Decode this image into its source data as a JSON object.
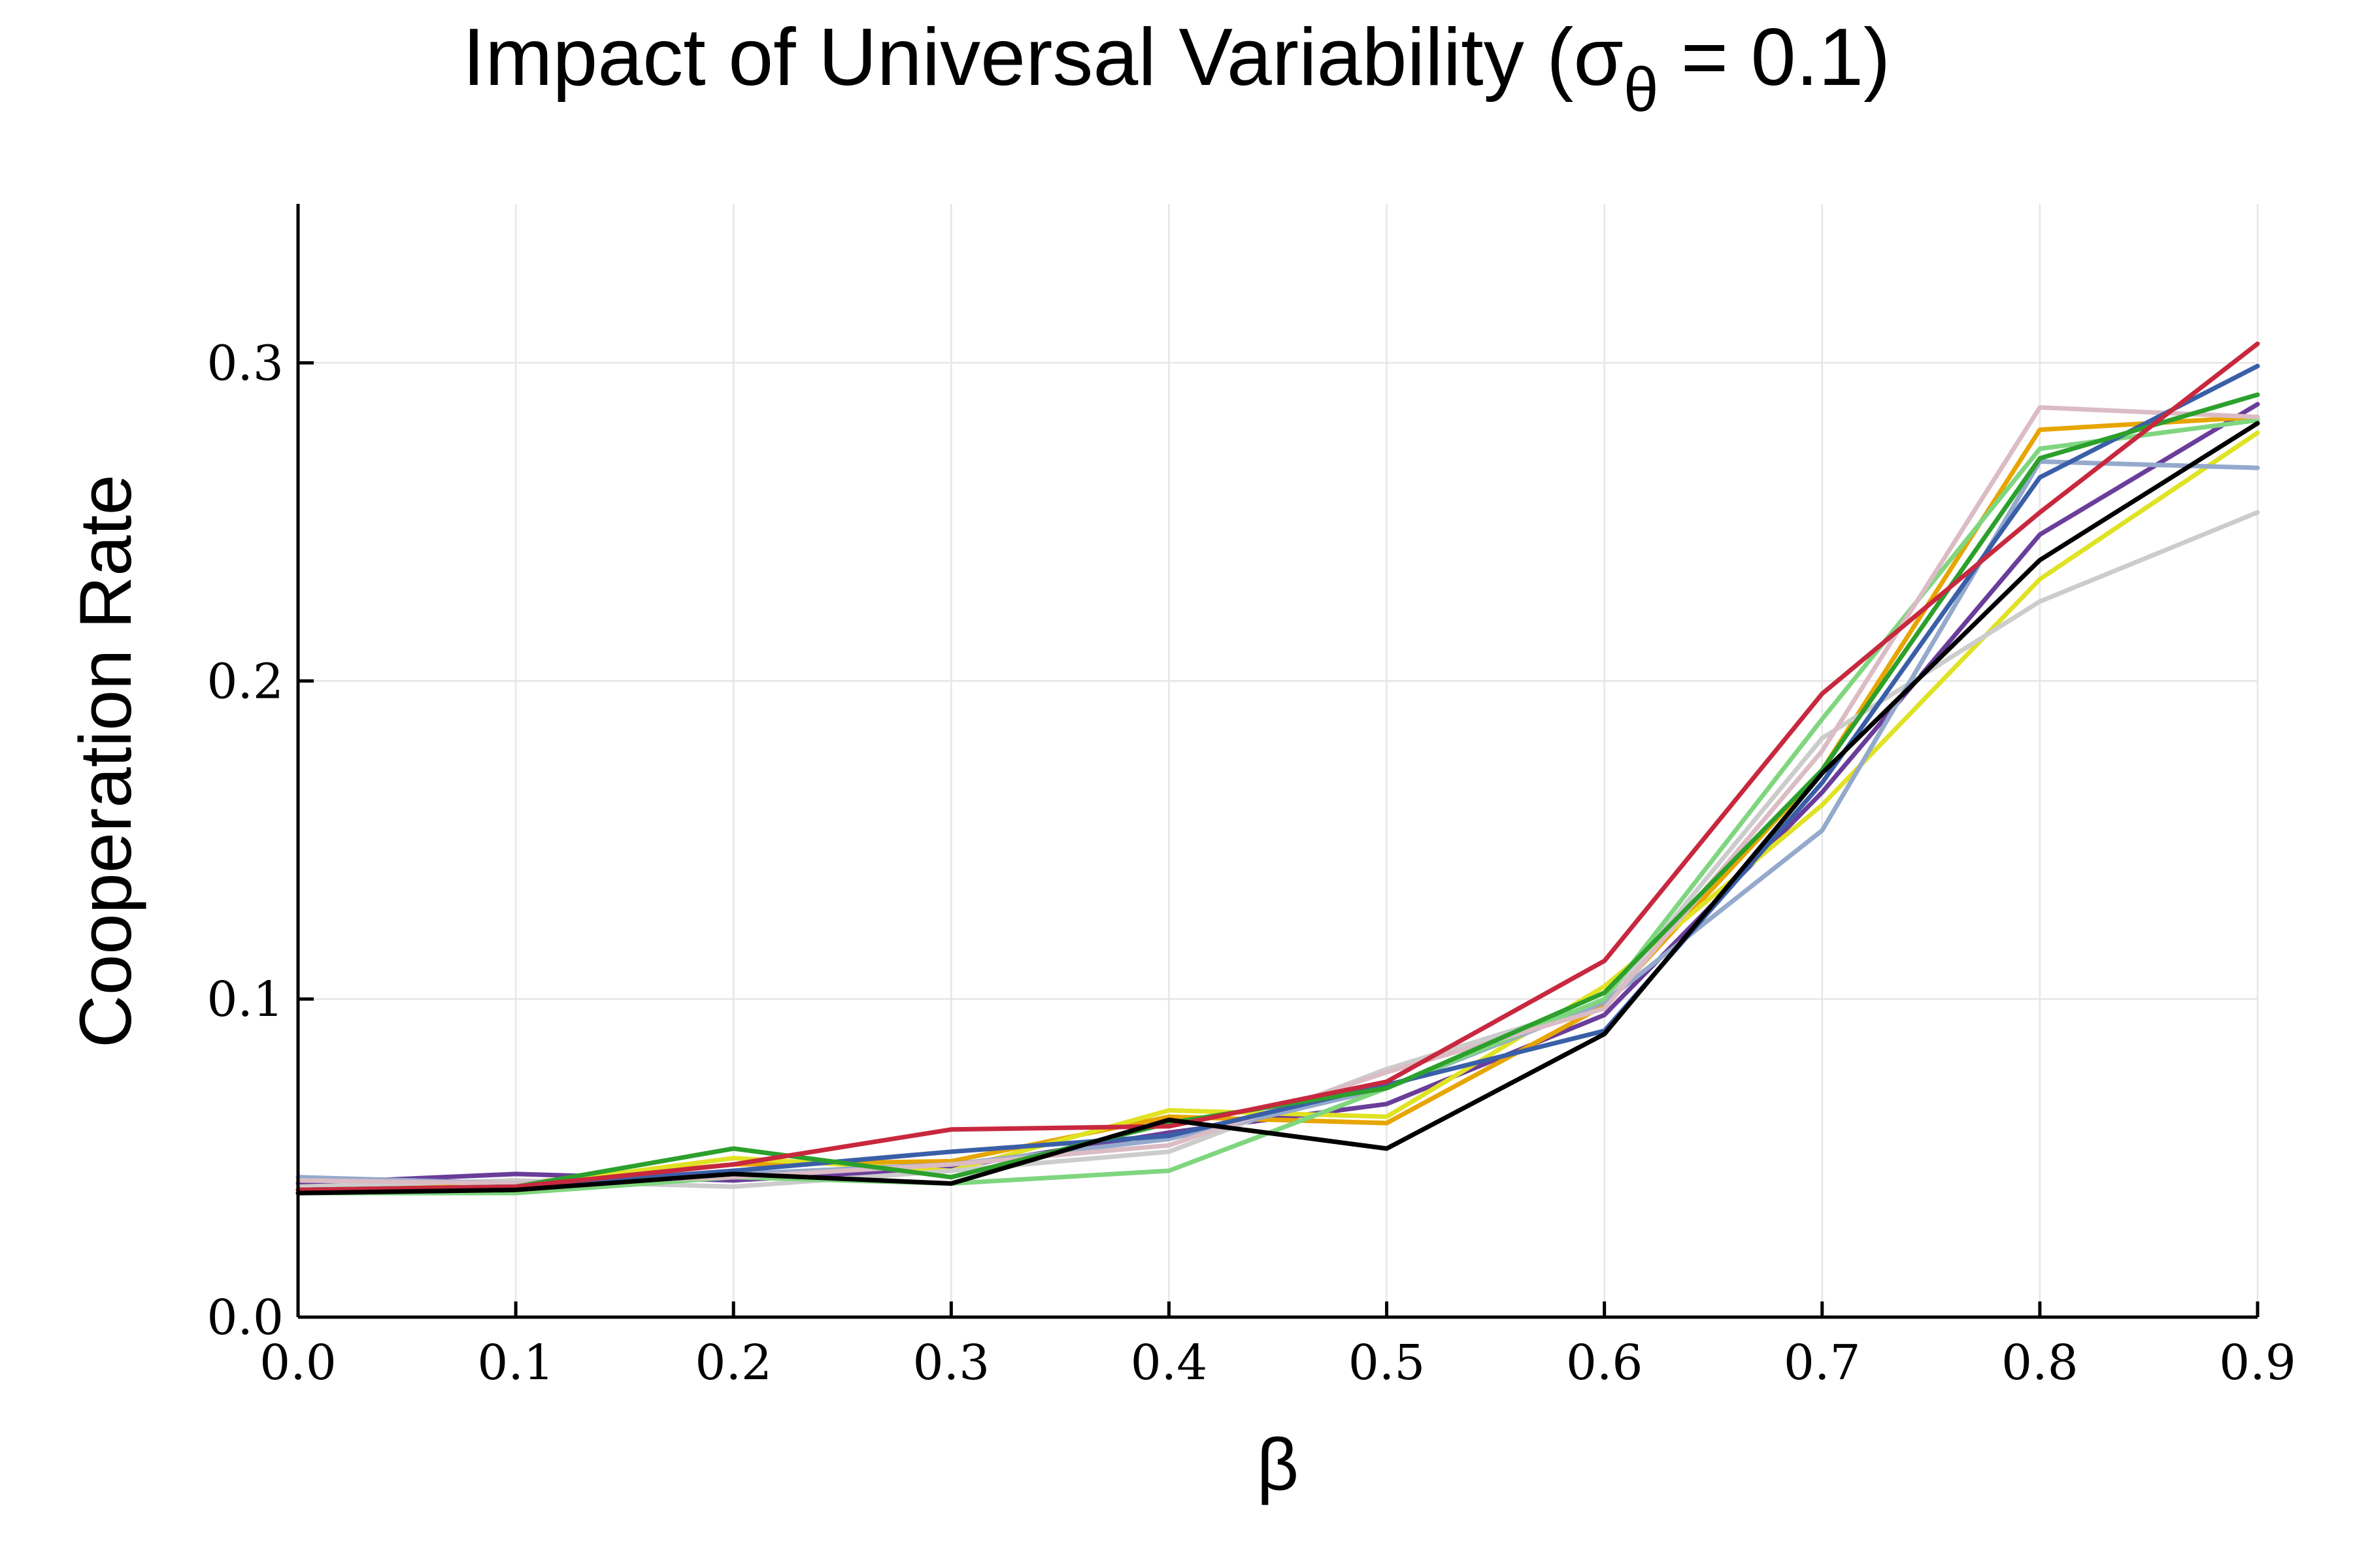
{
  "chart_data": {
    "type": "line",
    "title": "Impact of Universal Variability (σ",
    "title_sub": "θ",
    "title_end": " = 0.1)",
    "xlabel": "β",
    "ylabel": "Cooperation Rate",
    "xlim": [
      0.0,
      0.9
    ],
    "ylim": [
      0.0,
      0.35
    ],
    "xticks": [
      "0.0",
      "0.1",
      "0.2",
      "0.3",
      "0.4",
      "0.5",
      "0.6",
      "0.7",
      "0.8",
      "0.9"
    ],
    "yticks": [
      "0.0",
      "0.1",
      "0.2",
      "0.3"
    ],
    "grid": true,
    "legend": "none",
    "x": [
      0.0,
      0.1,
      0.2,
      0.3,
      0.4,
      0.5,
      0.6,
      0.7,
      0.8,
      0.9
    ],
    "series": [
      {
        "color": "#6a3d9a",
        "values": [
          0.042,
          0.045,
          0.043,
          0.047,
          0.058,
          0.067,
          0.095,
          0.165,
          0.246,
          0.287
        ]
      },
      {
        "color": "#e7a500",
        "values": [
          0.04,
          0.042,
          0.048,
          0.049,
          0.063,
          0.061,
          0.098,
          0.172,
          0.279,
          0.283
        ]
      },
      {
        "color": "#e0e224",
        "values": [
          0.039,
          0.041,
          0.05,
          0.046,
          0.065,
          0.063,
          0.104,
          0.161,
          0.232,
          0.278
        ]
      },
      {
        "color": "#cccccc",
        "values": [
          0.041,
          0.043,
          0.041,
          0.046,
          0.052,
          0.078,
          0.099,
          0.182,
          0.225,
          0.253
        ]
      },
      {
        "color": "#94a9cc",
        "values": [
          0.044,
          0.042,
          0.045,
          0.048,
          0.056,
          0.072,
          0.099,
          0.153,
          0.269,
          0.267
        ]
      },
      {
        "color": "#7fd67f",
        "values": [
          0.039,
          0.039,
          0.044,
          0.042,
          0.046,
          0.072,
          0.1,
          0.188,
          0.273,
          0.282
        ]
      },
      {
        "color": "#dbbcc4",
        "values": [
          0.043,
          0.042,
          0.044,
          0.048,
          0.054,
          0.077,
          0.097,
          0.178,
          0.286,
          0.283
        ]
      },
      {
        "color": "#3a5fa8",
        "values": [
          0.04,
          0.041,
          0.046,
          0.052,
          0.057,
          0.073,
          0.09,
          0.168,
          0.264,
          0.299
        ]
      },
      {
        "color": "#2ca02c",
        "values": [
          0.04,
          0.041,
          0.053,
          0.044,
          0.061,
          0.072,
          0.102,
          0.172,
          0.27,
          0.29
        ]
      },
      {
        "color": "#c8283e",
        "values": [
          0.04,
          0.041,
          0.048,
          0.059,
          0.06,
          0.074,
          0.112,
          0.196,
          0.253,
          0.306
        ]
      },
      {
        "color": "#000000",
        "values": [
          0.039,
          0.04,
          0.045,
          0.042,
          0.062,
          0.053,
          0.089,
          0.171,
          0.238,
          0.281
        ]
      }
    ]
  }
}
